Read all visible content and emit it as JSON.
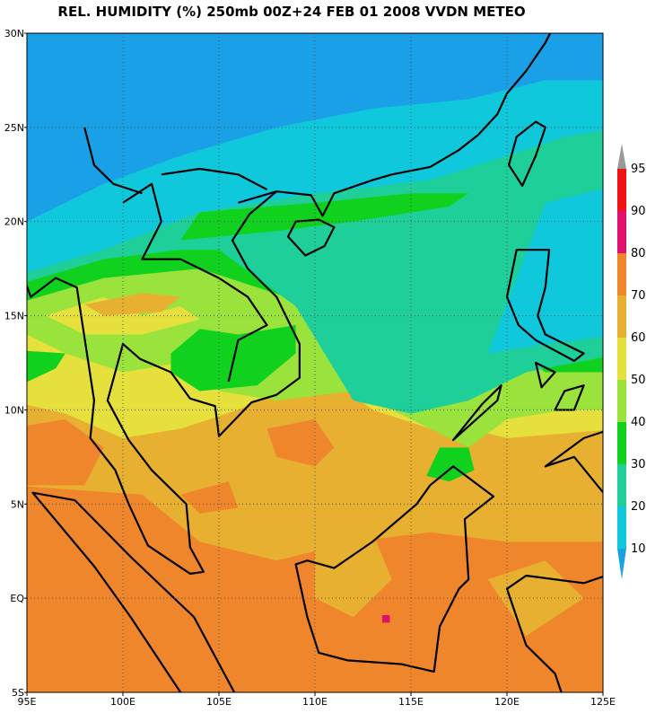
{
  "title": "REL. HUMIDITY (%) 250mb 00Z+24 FEB 01 2008 VVDN METEO",
  "x_axis": {
    "ticks": [
      "95E",
      "100E",
      "105E",
      "110E",
      "115E",
      "120E",
      "125E"
    ]
  },
  "y_axis": {
    "ticks": [
      "30N",
      "25N",
      "20N",
      "15N",
      "10N",
      "5N",
      "EQ",
      "5S"
    ]
  },
  "colorbar": {
    "levels": [
      10,
      20,
      30,
      40,
      50,
      60,
      70,
      80,
      90,
      95
    ],
    "colors": [
      "#1aa0e6",
      "#10c8dc",
      "#1ecf9a",
      "#10d21e",
      "#9ae23c",
      "#e6e03c",
      "#e8b030",
      "#f0862c",
      "#e0106e",
      "#f01414",
      "#999999"
    ]
  }
}
